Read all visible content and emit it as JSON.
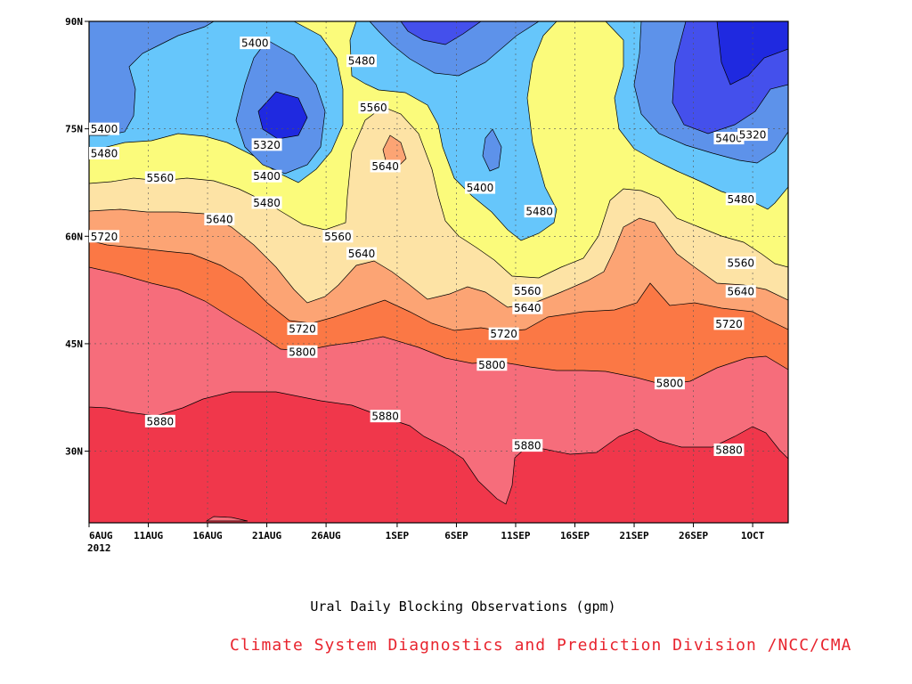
{
  "chart_data": {
    "type": "filled-contour",
    "title": "Ural Daily Blocking Observations (gpm)",
    "source": "Climate System Diagnostics and Prediction Division /NCC/CMA",
    "xlabel": "",
    "ylabel": "",
    "x_ticks": [
      "6AUG",
      "11AUG",
      "16AUG",
      "21AUG",
      "26AUG",
      "1SEP",
      "6SEP",
      "11SEP",
      "16SEP",
      "21SEP",
      "26SEP",
      "1OCT"
    ],
    "x_year_label": "2012",
    "y_ticks": [
      "30N",
      "45N",
      "60N",
      "75N",
      "90N"
    ],
    "xlim": [
      "2012-08-06",
      "2012-10-04"
    ],
    "ylim": [
      20,
      90
    ],
    "grid": true,
    "levels": [
      5320,
      5400,
      5480,
      5560,
      5640,
      5720,
      5800,
      5880
    ],
    "fill_colors": [
      "#1f29e0",
      "#4450ec",
      "#5d92ea",
      "#66c6fb",
      "#fbfb7b",
      "#fde3a5",
      "#fca474",
      "#fb7845",
      "#f66d7b",
      "#f0374b"
    ],
    "contour_labels": [
      {
        "value": "5400",
        "date": "2012-08-20",
        "lat": 87.0
      },
      {
        "value": "5480",
        "date": "2012-08-29",
        "lat": 84.5
      },
      {
        "value": "5400",
        "date": "2012-08-07",
        "lat": 75.0
      },
      {
        "value": "5560",
        "date": "2012-08-30",
        "lat": 78.0
      },
      {
        "value": "5480",
        "date": "2012-08-07",
        "lat": 71.6
      },
      {
        "value": "5320",
        "date": "2012-08-21",
        "lat": 72.8
      },
      {
        "value": "5400",
        "date": "2012-09-29",
        "lat": 73.7
      },
      {
        "value": "5320",
        "date": "2012-10-01",
        "lat": 74.2
      },
      {
        "value": "5560",
        "date": "2012-08-12",
        "lat": 68.2
      },
      {
        "value": "5640",
        "date": "2012-08-31",
        "lat": 69.8
      },
      {
        "value": "5400",
        "date": "2012-08-21",
        "lat": 68.4
      },
      {
        "value": "5400",
        "date": "2012-09-08",
        "lat": 66.8
      },
      {
        "value": "5480",
        "date": "2012-08-21",
        "lat": 64.7
      },
      {
        "value": "5480",
        "date": "2012-09-13",
        "lat": 63.5
      },
      {
        "value": "5480",
        "date": "2012-09-30",
        "lat": 65.2
      },
      {
        "value": "5640",
        "date": "2012-08-17",
        "lat": 62.4
      },
      {
        "value": "5720",
        "date": "2012-08-06",
        "lat": 60.0
      },
      {
        "value": "5560",
        "date": "2012-08-27",
        "lat": 60.0
      },
      {
        "value": "5640",
        "date": "2012-08-29",
        "lat": 57.6
      },
      {
        "value": "5560",
        "date": "2012-09-30",
        "lat": 56.3
      },
      {
        "value": "5560",
        "date": "2012-09-12",
        "lat": 52.4
      },
      {
        "value": "5640",
        "date": "2012-09-30",
        "lat": 52.3
      },
      {
        "value": "5640",
        "date": "2012-09-12",
        "lat": 50.0
      },
      {
        "value": "5720",
        "date": "2012-08-24",
        "lat": 47.1
      },
      {
        "value": "5720",
        "date": "2012-09-10",
        "lat": 46.4
      },
      {
        "value": "5720",
        "date": "2012-09-29",
        "lat": 47.8
      },
      {
        "value": "5800",
        "date": "2012-08-24",
        "lat": 43.9
      },
      {
        "value": "5800",
        "date": "2012-09-09",
        "lat": 42.1
      },
      {
        "value": "5800",
        "date": "2012-09-24",
        "lat": 39.5
      },
      {
        "value": "5880",
        "date": "2012-08-12",
        "lat": 34.2
      },
      {
        "value": "5880",
        "date": "2012-08-31",
        "lat": 34.9
      },
      {
        "value": "5880",
        "date": "2012-09-12",
        "lat": 30.8
      },
      {
        "value": "5880",
        "date": "2012-09-29",
        "lat": 30.2
      }
    ]
  }
}
